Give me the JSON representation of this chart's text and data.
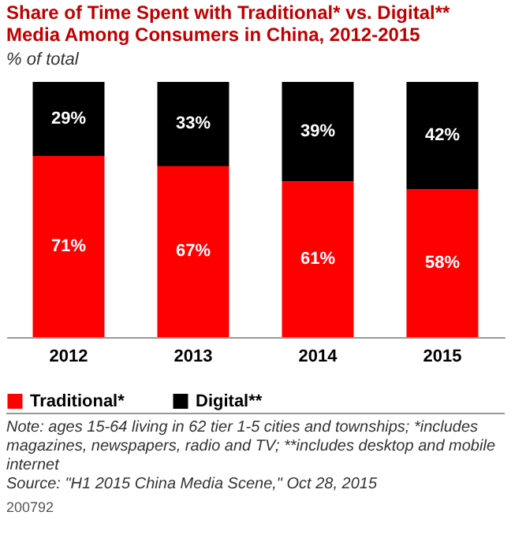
{
  "chart_data": {
    "type": "bar",
    "title": "Share of Time Spent with Traditional* vs. Digital** Media Among Consumers in China, 2012-2015",
    "subtitle": "% of total",
    "categories": [
      "2012",
      "2013",
      "2014",
      "2015"
    ],
    "stacked": true,
    "legend": "bottom left",
    "series": [
      {
        "name": "Traditional*",
        "color": "#ff0000",
        "values": [
          71,
          67,
          61,
          58
        ],
        "value_labels": [
          "71%",
          "67%",
          "61%",
          "58%"
        ]
      },
      {
        "name": "Digital**",
        "color": "#000000",
        "values": [
          29,
          33,
          39,
          42
        ],
        "value_labels": [
          "29%",
          "33%",
          "39%",
          "42%"
        ]
      }
    ],
    "annotations": [
      "Note: ages 15-64 living in 62 tier 1-5 cities and townships; *includes magazines, newspapers, radio and TV; **includes desktop and mobile internet",
      "Source: \"H1 2015 China Media Scene,\" Oct 28, 2015",
      "200792"
    ]
  }
}
